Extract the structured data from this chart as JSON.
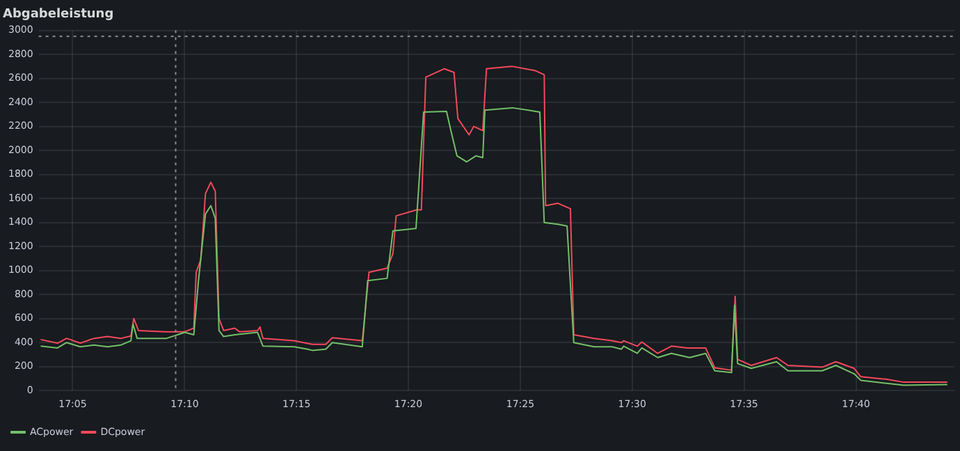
{
  "chart_data": {
    "type": "line",
    "title": "Abgabeleistung",
    "series": [
      {
        "name": "ACpower",
        "color": "#73bf69",
        "x": [
          17.0595,
          17.072,
          17.0788,
          17.089,
          17.0992,
          17.1092,
          17.1193,
          17.1267,
          17.1282,
          17.1313,
          17.1532,
          17.1668,
          17.1735,
          17.177,
          17.1822,
          17.1862,
          17.1895,
          17.1923,
          17.1957,
          17.204,
          17.221,
          17.225,
          17.2482,
          17.2583,
          17.2617,
          17.2718,
          17.2767,
          17.299,
          17.303,
          17.3175,
          17.3218,
          17.339,
          17.3447,
          17.3617,
          17.365,
          17.3695,
          17.3768,
          17.3837,
          17.3887,
          17.3903,
          17.4108,
          17.4312,
          17.4345,
          17.4447,
          17.4515,
          17.4565,
          17.4717,
          17.485,
          17.492,
          17.4937,
          17.5038,
          17.5072,
          17.519,
          17.5292,
          17.5428,
          17.5547,
          17.5615,
          17.574,
          17.5762,
          17.5785,
          17.5887,
          17.6075,
          17.616,
          17.6415,
          17.6517,
          17.6653,
          17.6703,
          17.7022,
          17.7347
        ],
        "values": [
          370,
          355,
          400,
          365,
          380,
          365,
          380,
          415,
          555,
          435,
          435,
          485,
          465,
          915,
          1470,
          1540,
          1435,
          500,
          450,
          465,
          485,
          370,
          365,
          345,
          335,
          345,
          400,
          365,
          915,
          935,
          1330,
          1350,
          2320,
          2325,
          2165,
          1955,
          1905,
          1955,
          1940,
          2335,
          2355,
          2320,
          1400,
          1385,
          1370,
          400,
          365,
          365,
          345,
          370,
          310,
          355,
          275,
          310,
          275,
          310,
          165,
          150,
          710,
          225,
          185,
          240,
          165,
          165,
          210,
          140,
          85,
          45,
          50
        ]
      },
      {
        "name": "DCpower",
        "color": "#f2495c",
        "x": [
          17.0595,
          17.072,
          17.0788,
          17.089,
          17.0992,
          17.1092,
          17.1193,
          17.1267,
          17.1288,
          17.1323,
          17.153,
          17.1667,
          17.1735,
          17.1753,
          17.1787,
          17.1822,
          17.1862,
          17.1895,
          17.1923,
          17.1957,
          17.204,
          17.2075,
          17.221,
          17.2228,
          17.225,
          17.2482,
          17.2617,
          17.2718,
          17.2767,
          17.299,
          17.304,
          17.3175,
          17.3218,
          17.3242,
          17.3395,
          17.343,
          17.3463,
          17.36,
          17.3673,
          17.3702,
          17.3785,
          17.382,
          17.3887,
          17.3915,
          17.4108,
          17.4277,
          17.4345,
          17.4355,
          17.4447,
          17.454,
          17.4565,
          17.4717,
          17.485,
          17.492,
          17.4937,
          17.5038,
          17.5072,
          17.519,
          17.5292,
          17.5412,
          17.5547,
          17.5615,
          17.574,
          17.5767,
          17.5785,
          17.5887,
          17.6075,
          17.616,
          17.6415,
          17.6517,
          17.6653,
          17.6703,
          17.689,
          17.7022,
          17.7347
        ],
        "values": [
          425,
          395,
          435,
          395,
          435,
          450,
          435,
          455,
          600,
          500,
          490,
          490,
          520,
          985,
          1090,
          1640,
          1735,
          1660,
          600,
          500,
          520,
          490,
          500,
          530,
          435,
          415,
          385,
          385,
          440,
          415,
          985,
          1020,
          1140,
          1455,
          1505,
          1505,
          2610,
          2680,
          2650,
          2265,
          2130,
          2200,
          2165,
          2680,
          2700,
          2665,
          2630,
          1540,
          1560,
          1515,
          465,
          435,
          415,
          400,
          415,
          370,
          405,
          310,
          370,
          355,
          355,
          190,
          170,
          785,
          260,
          210,
          275,
          210,
          195,
          240,
          185,
          115,
          95,
          70,
          70
        ]
      }
    ],
    "xlim": [
      17.058,
      17.74
    ],
    "xticks": [
      {
        "value": 17.0833,
        "label": "17:05"
      },
      {
        "value": 17.1667,
        "label": "17:10"
      },
      {
        "value": 17.25,
        "label": "17:15"
      },
      {
        "value": 17.3333,
        "label": "17:20"
      },
      {
        "value": 17.4167,
        "label": "17:25"
      },
      {
        "value": 17.5,
        "label": "17:30"
      },
      {
        "value": 17.5833,
        "label": "17:35"
      },
      {
        "value": 17.6667,
        "label": "17:40"
      }
    ],
    "ylim": [
      0,
      3000
    ],
    "yticks": [
      0,
      200,
      400,
      600,
      800,
      1000,
      1200,
      1400,
      1600,
      1800,
      2000,
      2200,
      2400,
      2600,
      2800,
      3000
    ],
    "ref_lines": [
      {
        "axis": "y",
        "value": 2950,
        "color": "#8e8e8e",
        "line_style": "dotted"
      },
      {
        "axis": "x",
        "value": 17.16,
        "color": "#8e8e8e",
        "line_style": "dotted"
      }
    ],
    "grid": true,
    "legend": "bottom left"
  }
}
